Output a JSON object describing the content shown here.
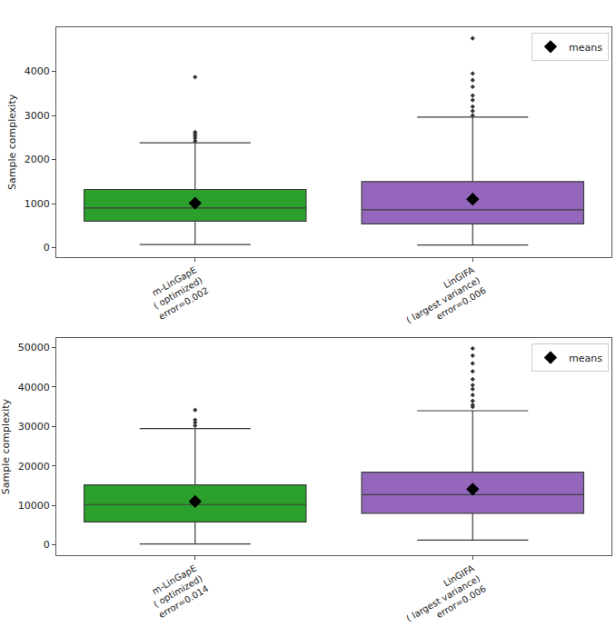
{
  "chart_data": [
    {
      "type": "box",
      "ylabel": "Sample complexity",
      "categories": [
        "m-LinGapE\n( optimized)\nerror=0.002",
        "LinGIFA\n( largest variance)\nerror=0.006"
      ],
      "colors": [
        "#2ca02c",
        "#9467bd"
      ],
      "q1": [
        600,
        540
      ],
      "median": [
        900,
        860
      ],
      "q3": [
        1320,
        1500
      ],
      "lowerfence": [
        70,
        60
      ],
      "upperfence": [
        2380,
        2960
      ],
      "means": [
        1010,
        1100
      ],
      "outliers": [
        [
          2420,
          2480,
          2530,
          2580,
          2620,
          3870
        ],
        [
          3000,
          3100,
          3200,
          3350,
          3450,
          3650,
          3800,
          3950,
          4750
        ]
      ],
      "mean_label": "means",
      "legend": "upper right",
      "grid": false,
      "ylim": [
        -210,
        5000
      ],
      "yticks": [
        0,
        1000,
        2000,
        3000,
        4000
      ]
    },
    {
      "type": "box",
      "ylabel": "Sample complexity",
      "categories": [
        "m-LinGapE\n( optimized)\nerror=0.014",
        "LinGIFA\n( largest variance)\nerror=0.006"
      ],
      "colors": [
        "#2ca02c",
        "#9467bd"
      ],
      "q1": [
        5800,
        8000
      ],
      "median": [
        10200,
        12700
      ],
      "q3": [
        15200,
        18400
      ],
      "lowerfence": [
        200,
        1200
      ],
      "upperfence": [
        29500,
        34000
      ],
      "means": [
        11000,
        14100
      ],
      "outliers": [
        [
          30200,
          31000,
          31700,
          34200
        ],
        [
          35000,
          35500,
          36500,
          38000,
          39500,
          40500,
          42000,
          44000,
          46000,
          48000,
          49800
        ]
      ],
      "mean_label": "means",
      "legend": "upper right",
      "grid": false,
      "ylim": [
        -2650,
        52400
      ],
      "yticks": [
        0,
        10000,
        20000,
        30000,
        40000,
        50000
      ]
    }
  ]
}
